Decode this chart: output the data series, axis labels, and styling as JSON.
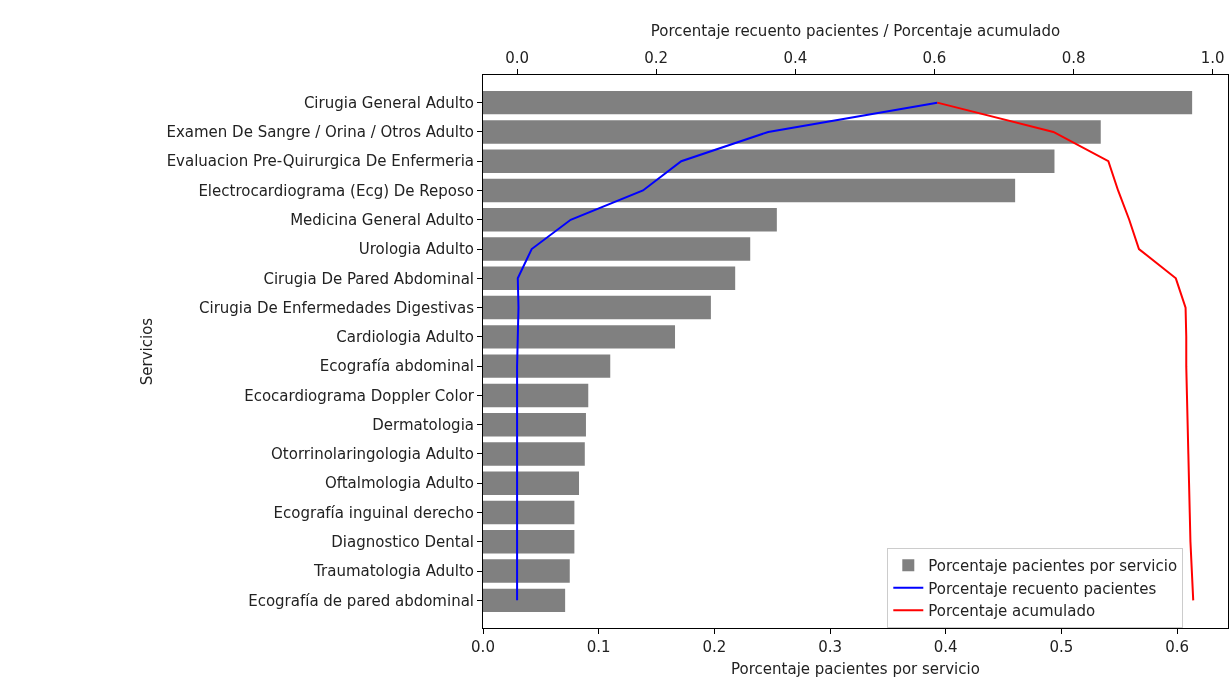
{
  "chart_data": {
    "type": "bar",
    "orientation": "horizontal",
    "xlabel": "Porcentaje pacientes por servicio",
    "x2label": "Porcentaje recuento pacientes / Porcentaje acumulado",
    "ylabel": "Servicios",
    "categories": [
      "Cirugia General Adulto",
      "Examen De Sangre / Orina / Otros Adulto",
      "Evaluacion Pre-Quirurgica De Enfermeria",
      "Electrocardiograma (Ecg) De Reposo",
      "Medicina General Adulto",
      "Urologia Adulto",
      "Cirugia De Pared Abdominal",
      "Cirugia De Enfermedades Digestivas",
      "Cardiologia Adulto",
      "Ecografía abdominal",
      "Ecocardiograma Doppler Color",
      "Dermatologia",
      "Otorrinolaringologia Adulto",
      "Oftalmologia Adulto",
      "Ecografía inguinal derecho",
      "Diagnostico Dental",
      "Traumatologia Adulto",
      "Ecografía de pared abdominal"
    ],
    "series": [
      {
        "name": "Porcentaje pacientes por servicio",
        "color": "#808080",
        "values": [
          0.613,
          0.534,
          0.494,
          0.46,
          0.254,
          0.231,
          0.218,
          0.197,
          0.166,
          0.11,
          0.091,
          0.089,
          0.088,
          0.083,
          0.079,
          0.079,
          0.075,
          0.071
        ]
      },
      {
        "name": "Porcentaje recuento pacientes",
        "type": "line",
        "axis": "x2",
        "color": "#0000ff",
        "values": [
          0.604,
          0.361,
          0.236,
          0.181,
          0.077,
          0.021,
          0.001,
          0.002,
          0.001,
          0,
          0,
          0,
          0,
          0,
          0,
          0,
          0,
          0
        ]
      },
      {
        "name": "Porcentaje acumulado",
        "type": "line",
        "axis": "x2",
        "color": "#ff0000",
        "values": [
          0.604,
          0.771,
          0.85,
          0.864,
          0.88,
          0.894,
          0.947,
          0.961,
          0.962,
          0.962,
          0.963,
          0.964,
          0.965,
          0.966,
          0.967,
          0.968,
          0.97,
          0.972
        ]
      }
    ],
    "xlim": [
      0,
      0.644
    ],
    "xticks": [
      {
        "value": 0,
        "label": "0.0"
      },
      0.1,
      0.2,
      0.3,
      0.4,
      0.5,
      0.6
    ],
    "x2lim": [
      -0.049,
      1.022
    ],
    "x2ticks": [
      {
        "value": 0,
        "label": "0.0"
      },
      0.2,
      0.4,
      0.6,
      0.8,
      {
        "value": 1,
        "label": "1.0"
      }
    ],
    "grid": false,
    "legend": "bottom right"
  }
}
